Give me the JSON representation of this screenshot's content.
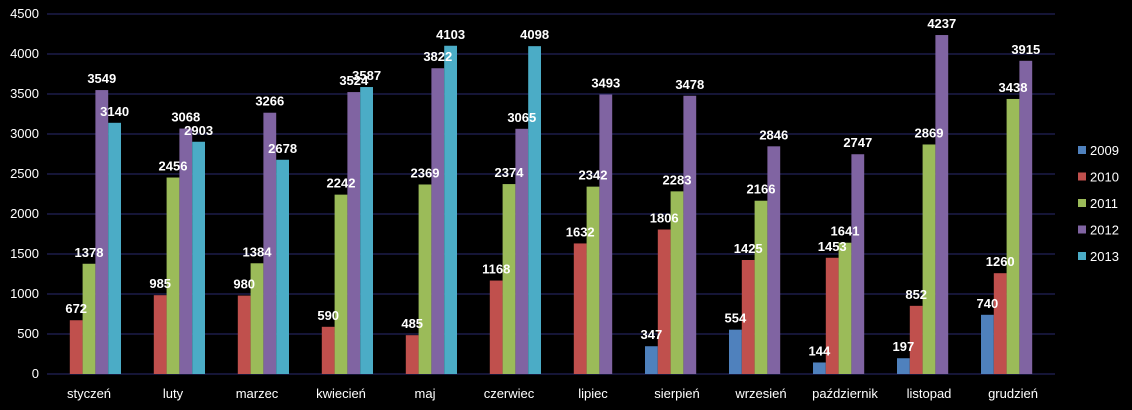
{
  "chart_data": {
    "type": "bar",
    "categories": [
      "styczeń",
      "luty",
      "marzec",
      "kwiecień",
      "maj",
      "czerwiec",
      "lipiec",
      "sierpień",
      "wrzesień",
      "październik",
      "listopad",
      "grudzień"
    ],
    "series": [
      {
        "name": "2009",
        "color": "#4f81bd",
        "values": [
          null,
          null,
          null,
          null,
          null,
          null,
          null,
          347,
          554,
          144,
          197,
          740
        ]
      },
      {
        "name": "2010",
        "color": "#c0504d",
        "values": [
          672,
          985,
          980,
          590,
          485,
          1168,
          1632,
          1806,
          1425,
          1453,
          852,
          1260
        ]
      },
      {
        "name": "2011",
        "color": "#9bbb59",
        "values": [
          1378,
          2456,
          1384,
          2242,
          2369,
          2374,
          2342,
          2283,
          2166,
          1641,
          2869,
          3438
        ]
      },
      {
        "name": "2012",
        "color": "#8064a2",
        "values": [
          3549,
          3068,
          3266,
          3524,
          3822,
          3065,
          3493,
          3478,
          2846,
          2747,
          4237,
          3915
        ]
      },
      {
        "name": "2013",
        "color": "#4bacc6",
        "values": [
          3140,
          2903,
          2678,
          3587,
          4103,
          4098,
          null,
          null,
          null,
          null,
          null,
          null
        ]
      }
    ],
    "y_ticks": [
      "0",
      "500",
      "1000",
      "1500",
      "2000",
      "2500",
      "3000",
      "3500",
      "4000",
      "4500"
    ],
    "ylim": [
      0,
      4500
    ],
    "grid": true,
    "legend_position": "right",
    "data_labels": true,
    "background": "#000000",
    "gridline_color": "#2a2a6e"
  }
}
